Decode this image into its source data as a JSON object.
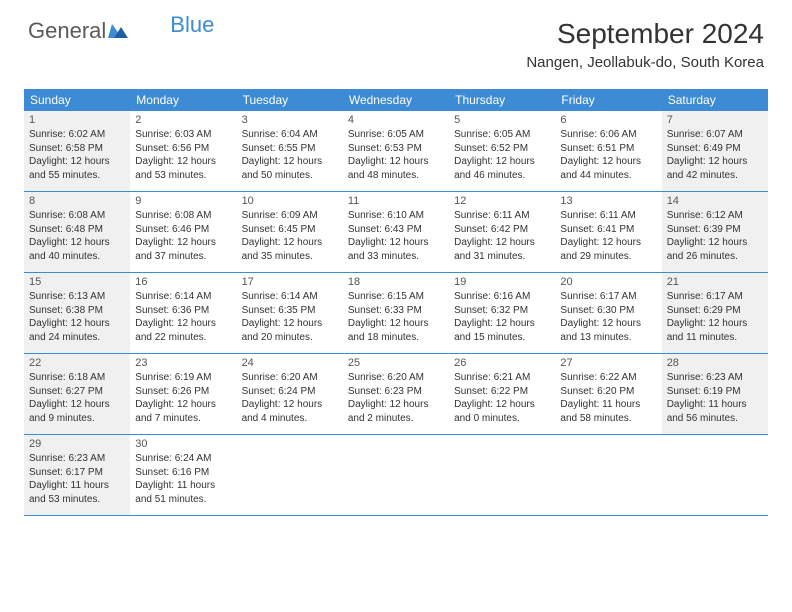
{
  "logo": {
    "text_general": "General",
    "text_blue": "Blue"
  },
  "header": {
    "month_title": "September 2024",
    "location": "Nangen, Jeollabuk-do, South Korea"
  },
  "colors": {
    "header_bar": "#3d8bd4",
    "shaded_cell": "#f0f0f0",
    "row_border": "#3d8bd4",
    "text": "#333333",
    "logo_gray": "#5a5a5a",
    "logo_blue": "#3d8bd4"
  },
  "weekdays": [
    "Sunday",
    "Monday",
    "Tuesday",
    "Wednesday",
    "Thursday",
    "Friday",
    "Saturday"
  ],
  "weeks": [
    [
      {
        "num": "1",
        "shaded": true,
        "sunrise": "Sunrise: 6:02 AM",
        "sunset": "Sunset: 6:58 PM",
        "daylight": "Daylight: 12 hours and 55 minutes."
      },
      {
        "num": "2",
        "shaded": false,
        "sunrise": "Sunrise: 6:03 AM",
        "sunset": "Sunset: 6:56 PM",
        "daylight": "Daylight: 12 hours and 53 minutes."
      },
      {
        "num": "3",
        "shaded": false,
        "sunrise": "Sunrise: 6:04 AM",
        "sunset": "Sunset: 6:55 PM",
        "daylight": "Daylight: 12 hours and 50 minutes."
      },
      {
        "num": "4",
        "shaded": false,
        "sunrise": "Sunrise: 6:05 AM",
        "sunset": "Sunset: 6:53 PM",
        "daylight": "Daylight: 12 hours and 48 minutes."
      },
      {
        "num": "5",
        "shaded": false,
        "sunrise": "Sunrise: 6:05 AM",
        "sunset": "Sunset: 6:52 PM",
        "daylight": "Daylight: 12 hours and 46 minutes."
      },
      {
        "num": "6",
        "shaded": false,
        "sunrise": "Sunrise: 6:06 AM",
        "sunset": "Sunset: 6:51 PM",
        "daylight": "Daylight: 12 hours and 44 minutes."
      },
      {
        "num": "7",
        "shaded": true,
        "sunrise": "Sunrise: 6:07 AM",
        "sunset": "Sunset: 6:49 PM",
        "daylight": "Daylight: 12 hours and 42 minutes."
      }
    ],
    [
      {
        "num": "8",
        "shaded": true,
        "sunrise": "Sunrise: 6:08 AM",
        "sunset": "Sunset: 6:48 PM",
        "daylight": "Daylight: 12 hours and 40 minutes."
      },
      {
        "num": "9",
        "shaded": false,
        "sunrise": "Sunrise: 6:08 AM",
        "sunset": "Sunset: 6:46 PM",
        "daylight": "Daylight: 12 hours and 37 minutes."
      },
      {
        "num": "10",
        "shaded": false,
        "sunrise": "Sunrise: 6:09 AM",
        "sunset": "Sunset: 6:45 PM",
        "daylight": "Daylight: 12 hours and 35 minutes."
      },
      {
        "num": "11",
        "shaded": false,
        "sunrise": "Sunrise: 6:10 AM",
        "sunset": "Sunset: 6:43 PM",
        "daylight": "Daylight: 12 hours and 33 minutes."
      },
      {
        "num": "12",
        "shaded": false,
        "sunrise": "Sunrise: 6:11 AM",
        "sunset": "Sunset: 6:42 PM",
        "daylight": "Daylight: 12 hours and 31 minutes."
      },
      {
        "num": "13",
        "shaded": false,
        "sunrise": "Sunrise: 6:11 AM",
        "sunset": "Sunset: 6:41 PM",
        "daylight": "Daylight: 12 hours and 29 minutes."
      },
      {
        "num": "14",
        "shaded": true,
        "sunrise": "Sunrise: 6:12 AM",
        "sunset": "Sunset: 6:39 PM",
        "daylight": "Daylight: 12 hours and 26 minutes."
      }
    ],
    [
      {
        "num": "15",
        "shaded": true,
        "sunrise": "Sunrise: 6:13 AM",
        "sunset": "Sunset: 6:38 PM",
        "daylight": "Daylight: 12 hours and 24 minutes."
      },
      {
        "num": "16",
        "shaded": false,
        "sunrise": "Sunrise: 6:14 AM",
        "sunset": "Sunset: 6:36 PM",
        "daylight": "Daylight: 12 hours and 22 minutes."
      },
      {
        "num": "17",
        "shaded": false,
        "sunrise": "Sunrise: 6:14 AM",
        "sunset": "Sunset: 6:35 PM",
        "daylight": "Daylight: 12 hours and 20 minutes."
      },
      {
        "num": "18",
        "shaded": false,
        "sunrise": "Sunrise: 6:15 AM",
        "sunset": "Sunset: 6:33 PM",
        "daylight": "Daylight: 12 hours and 18 minutes."
      },
      {
        "num": "19",
        "shaded": false,
        "sunrise": "Sunrise: 6:16 AM",
        "sunset": "Sunset: 6:32 PM",
        "daylight": "Daylight: 12 hours and 15 minutes."
      },
      {
        "num": "20",
        "shaded": false,
        "sunrise": "Sunrise: 6:17 AM",
        "sunset": "Sunset: 6:30 PM",
        "daylight": "Daylight: 12 hours and 13 minutes."
      },
      {
        "num": "21",
        "shaded": true,
        "sunrise": "Sunrise: 6:17 AM",
        "sunset": "Sunset: 6:29 PM",
        "daylight": "Daylight: 12 hours and 11 minutes."
      }
    ],
    [
      {
        "num": "22",
        "shaded": true,
        "sunrise": "Sunrise: 6:18 AM",
        "sunset": "Sunset: 6:27 PM",
        "daylight": "Daylight: 12 hours and 9 minutes."
      },
      {
        "num": "23",
        "shaded": false,
        "sunrise": "Sunrise: 6:19 AM",
        "sunset": "Sunset: 6:26 PM",
        "daylight": "Daylight: 12 hours and 7 minutes."
      },
      {
        "num": "24",
        "shaded": false,
        "sunrise": "Sunrise: 6:20 AM",
        "sunset": "Sunset: 6:24 PM",
        "daylight": "Daylight: 12 hours and 4 minutes."
      },
      {
        "num": "25",
        "shaded": false,
        "sunrise": "Sunrise: 6:20 AM",
        "sunset": "Sunset: 6:23 PM",
        "daylight": "Daylight: 12 hours and 2 minutes."
      },
      {
        "num": "26",
        "shaded": false,
        "sunrise": "Sunrise: 6:21 AM",
        "sunset": "Sunset: 6:22 PM",
        "daylight": "Daylight: 12 hours and 0 minutes."
      },
      {
        "num": "27",
        "shaded": false,
        "sunrise": "Sunrise: 6:22 AM",
        "sunset": "Sunset: 6:20 PM",
        "daylight": "Daylight: 11 hours and 58 minutes."
      },
      {
        "num": "28",
        "shaded": true,
        "sunrise": "Sunrise: 6:23 AM",
        "sunset": "Sunset: 6:19 PM",
        "daylight": "Daylight: 11 hours and 56 minutes."
      }
    ],
    [
      {
        "num": "29",
        "shaded": true,
        "sunrise": "Sunrise: 6:23 AM",
        "sunset": "Sunset: 6:17 PM",
        "daylight": "Daylight: 11 hours and 53 minutes."
      },
      {
        "num": "30",
        "shaded": false,
        "sunrise": "Sunrise: 6:24 AM",
        "sunset": "Sunset: 6:16 PM",
        "daylight": "Daylight: 11 hours and 51 minutes."
      },
      {
        "empty": true
      },
      {
        "empty": true
      },
      {
        "empty": true
      },
      {
        "empty": true
      },
      {
        "empty": true
      }
    ]
  ]
}
